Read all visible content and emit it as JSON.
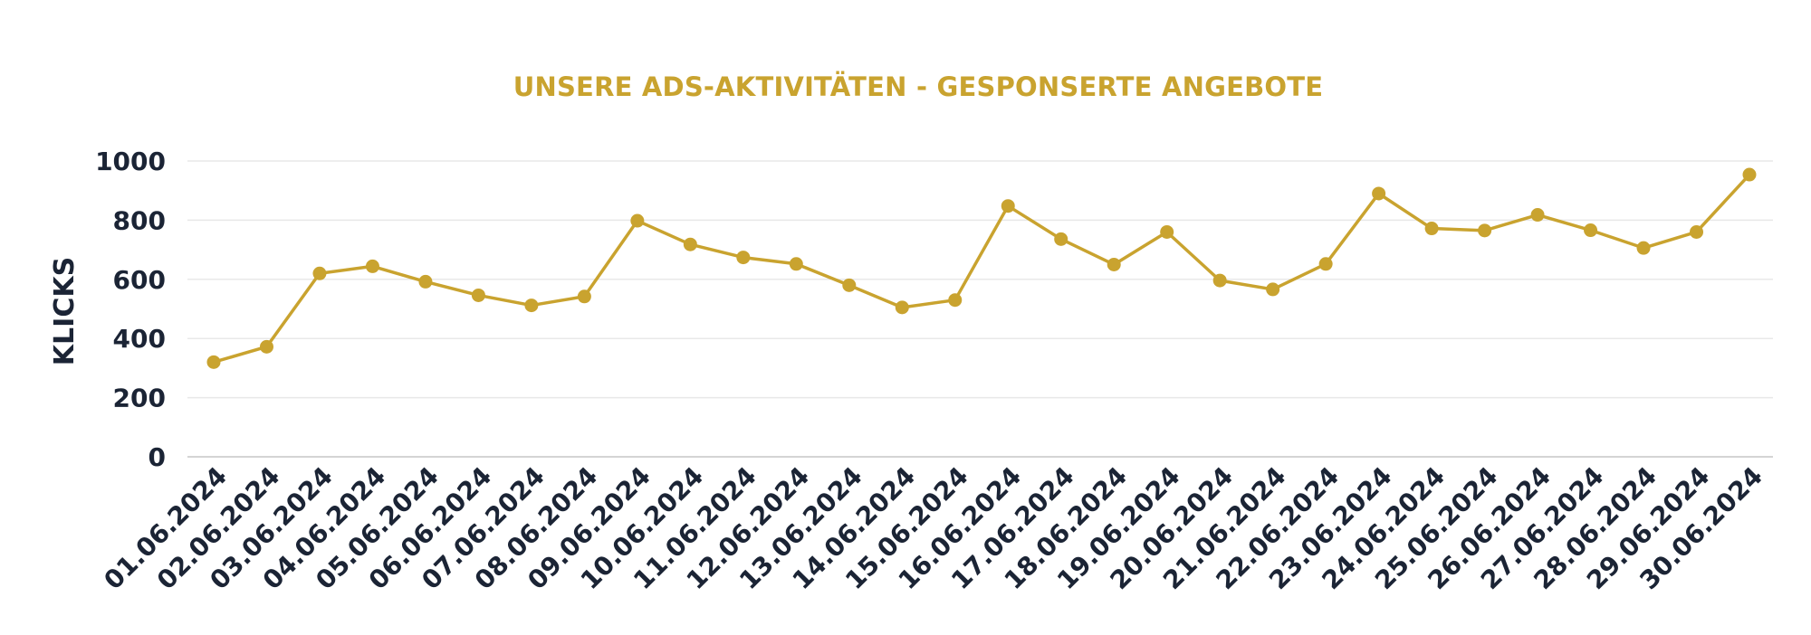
{
  "colors": {
    "series": "#c9a32f",
    "title": "#c9a32f",
    "text": "#1b2435",
    "grid": "#e8e8e8",
    "axis": "#d4d4d4"
  },
  "chart_data": {
    "type": "line",
    "title": "UNSERE ADS-AKTIVITÄTEN - GESPONSERTE ANGEBOTE",
    "xlabel": "",
    "ylabel": "KLICKS",
    "ylim": [
      0,
      1000
    ],
    "yticks": [
      0,
      200,
      400,
      600,
      800,
      1000
    ],
    "grid": true,
    "legend": "none",
    "categories": [
      "01.06.2024",
      "02.06.2024",
      "03.06.2024",
      "04.06.2024",
      "05.06.2024",
      "06.06.2024",
      "07.06.2024",
      "08.06.2024",
      "09.06.2024",
      "10.06.2024",
      "11.06.2024",
      "12.06.2024",
      "13.06.2024",
      "14.06.2024",
      "15.06.2024",
      "16.06.2024",
      "17.06.2024",
      "18.06.2024",
      "19.06.2024",
      "20.06.2024",
      "21.06.2024",
      "22.06.2024",
      "23.06.2024",
      "24.06.2024",
      "25.06.2024",
      "26.06.2024",
      "27.06.2024",
      "28.06.2024",
      "29.06.2024",
      "30.06.2024"
    ],
    "series": [
      {
        "values": [
          320,
          372,
          620,
          644,
          592,
          546,
          512,
          542,
          798,
          718,
          674,
          652,
          580,
          505,
          530,
          848,
          736,
          650,
          760,
          596,
          566,
          652,
          890,
          772,
          765,
          818,
          766,
          706,
          760,
          954
        ]
      }
    ]
  }
}
